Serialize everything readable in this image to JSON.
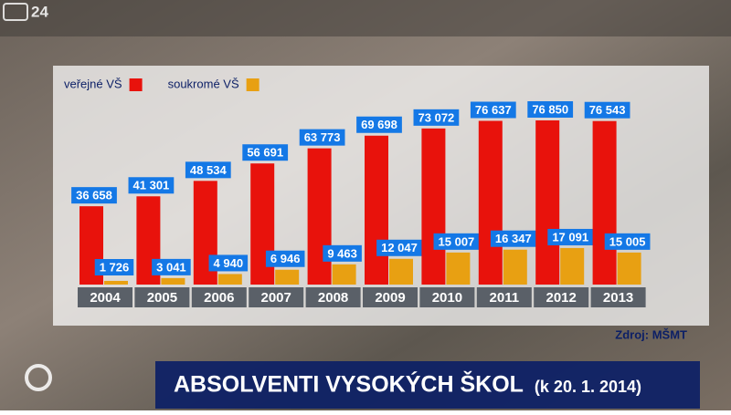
{
  "chart_data": {
    "type": "bar",
    "title": "ABSOLVENTI VYSOKÝCH ŠKOL",
    "subtitle": "(k 20. 1. 2014)",
    "source": "Zdroj: MŠMT",
    "channel": "24",
    "categories": [
      "2004",
      "2005",
      "2006",
      "2007",
      "2008",
      "2009",
      "2010",
      "2011",
      "2012",
      "2013"
    ],
    "series": [
      {
        "name": "veřejné VŠ",
        "color": "#e8120c",
        "values": [
          36658,
          41301,
          48534,
          56691,
          63773,
          69698,
          73072,
          76637,
          76850,
          76543
        ],
        "value_labels": [
          "36 658",
          "41 301",
          "48 534",
          "56 691",
          "63 773",
          "69 698",
          "73 072",
          "76 637",
          "76 850",
          "76 543"
        ]
      },
      {
        "name": "soukromé VŠ",
        "color": "#e8a012",
        "values": [
          1726,
          3041,
          4940,
          6946,
          9463,
          12047,
          15007,
          16347,
          17091,
          15005
        ],
        "value_labels": [
          "1 726",
          "3 041",
          "4 940",
          "6 946",
          "9 463",
          "12 047",
          "15 007",
          "16 347",
          "17 091",
          "15 005"
        ]
      }
    ]
  }
}
